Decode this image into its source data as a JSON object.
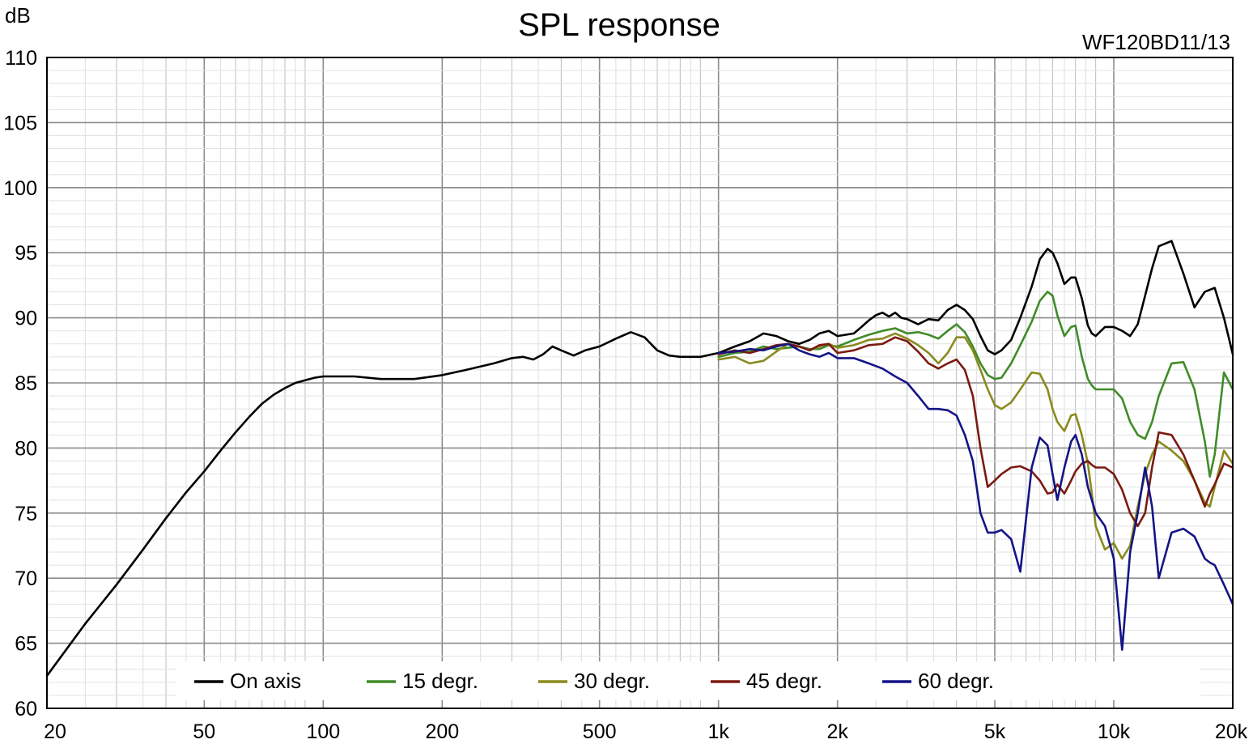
{
  "chart_data": {
    "type": "line",
    "title": "SPL response",
    "subtitle": "WF120BD11/13",
    "ylabel": "dB",
    "xscale": "log",
    "xlim": [
      20,
      20000
    ],
    "ylim": [
      60,
      110
    ],
    "grid": true,
    "legend_position": "bottom",
    "yticks": [
      "60",
      "65",
      "70",
      "75",
      "80",
      "85",
      "90",
      "95",
      "100",
      "105",
      "110"
    ],
    "xticks": [
      "20",
      "50",
      "100",
      "200",
      "500",
      "1k",
      "2k",
      "5k",
      "10k",
      "20k"
    ],
    "series": [
      {
        "name": "On axis",
        "color": "#000000",
        "x": [
          20,
          25,
          30,
          35,
          40,
          45,
          50,
          55,
          60,
          65,
          70,
          75,
          80,
          85,
          90,
          95,
          100,
          110,
          120,
          140,
          170,
          200,
          230,
          270,
          300,
          320,
          340,
          360,
          380,
          400,
          430,
          460,
          500,
          550,
          600,
          650,
          700,
          750,
          800,
          900,
          1000,
          1100,
          1200,
          1300,
          1400,
          1500,
          1600,
          1700,
          1800,
          1900,
          2000,
          2100,
          2200,
          2300,
          2400,
          2500,
          2600,
          2700,
          2800,
          2900,
          3000,
          3200,
          3400,
          3600,
          3800,
          4000,
          4200,
          4400,
          4600,
          4800,
          5000,
          5200,
          5500,
          5800,
          6200,
          6500,
          6800,
          7000,
          7200,
          7500,
          7800,
          8000,
          8300,
          8600,
          8800,
          9000,
          9500,
          10000,
          10500,
          11000,
          11500,
          12000,
          12500,
          13000,
          14000,
          15000,
          16000,
          17000,
          18000,
          19000,
          20000
        ],
        "y": [
          62.5,
          66.5,
          69.5,
          72.2,
          74.6,
          76.6,
          78.2,
          79.8,
          81.2,
          82.4,
          83.4,
          84.1,
          84.6,
          85.0,
          85.2,
          85.4,
          85.5,
          85.5,
          85.5,
          85.3,
          85.3,
          85.6,
          86.0,
          86.5,
          86.9,
          87.0,
          86.8,
          87.2,
          87.8,
          87.5,
          87.1,
          87.5,
          87.8,
          88.4,
          88.9,
          88.5,
          87.5,
          87.1,
          87.0,
          87.0,
          87.3,
          87.8,
          88.2,
          88.8,
          88.6,
          88.2,
          88.0,
          88.3,
          88.8,
          89.0,
          88.6,
          88.7,
          88.8,
          89.3,
          89.8,
          90.2,
          90.4,
          90.1,
          90.4,
          90.0,
          89.9,
          89.5,
          89.9,
          89.8,
          90.6,
          91.0,
          90.6,
          89.9,
          88.6,
          87.5,
          87.2,
          87.5,
          88.3,
          90.0,
          92.4,
          94.5,
          95.3,
          95.0,
          94.2,
          92.6,
          93.1,
          93.1,
          91.5,
          89.4,
          88.8,
          88.6,
          89.3,
          89.3,
          89.0,
          88.6,
          89.5,
          91.7,
          93.8,
          95.5,
          95.9,
          93.4,
          90.8,
          92.0,
          92.3,
          90.0,
          87.2
        ]
      },
      {
        "name": "15 degr.",
        "color": "#3f8c28",
        "x": [
          1000,
          1100,
          1200,
          1300,
          1400,
          1500,
          1600,
          1700,
          1800,
          1900,
          2000,
          2200,
          2400,
          2600,
          2800,
          3000,
          3200,
          3400,
          3600,
          3800,
          4000,
          4200,
          4400,
          4600,
          4800,
          5000,
          5200,
          5500,
          5800,
          6200,
          6500,
          6800,
          7000,
          7200,
          7500,
          7800,
          8000,
          8300,
          8600,
          8800,
          9000,
          9500,
          10000,
          10500,
          11000,
          11500,
          12000,
          12500,
          13000,
          14000,
          15000,
          16000,
          17000,
          17500,
          18000,
          19000,
          20000
        ],
        "y": [
          87.0,
          87.3,
          87.4,
          87.8,
          87.6,
          87.7,
          87.8,
          87.6,
          87.6,
          87.9,
          87.8,
          88.3,
          88.7,
          89.0,
          89.2,
          88.8,
          88.9,
          88.7,
          88.4,
          89.0,
          89.5,
          88.9,
          87.8,
          86.5,
          85.6,
          85.3,
          85.4,
          86.5,
          87.9,
          89.7,
          91.3,
          92.0,
          91.7,
          90.2,
          88.6,
          89.3,
          89.4,
          87.0,
          85.3,
          84.8,
          84.5,
          84.5,
          84.5,
          83.8,
          82.0,
          81.0,
          80.7,
          82.0,
          84.0,
          86.5,
          86.6,
          84.5,
          80.5,
          77.8,
          79.5,
          85.8,
          84.5
        ]
      },
      {
        "name": "30 degr.",
        "color": "#8a8a1e",
        "x": [
          1000,
          1100,
          1200,
          1300,
          1400,
          1500,
          1600,
          1700,
          1800,
          1900,
          2000,
          2200,
          2400,
          2600,
          2800,
          3000,
          3200,
          3400,
          3600,
          3800,
          4000,
          4200,
          4400,
          4600,
          4800,
          5000,
          5200,
          5500,
          5800,
          6200,
          6500,
          6800,
          7000,
          7200,
          7500,
          7800,
          8000,
          8300,
          8600,
          8800,
          9000,
          9500,
          10000,
          10500,
          11000,
          11500,
          12000,
          12500,
          13000,
          14000,
          15000,
          16000,
          17000,
          17500,
          18000,
          19000,
          20000
        ],
        "y": [
          86.8,
          87.0,
          86.5,
          86.7,
          87.4,
          88.0,
          87.8,
          87.5,
          87.8,
          88.0,
          87.7,
          87.9,
          88.3,
          88.4,
          88.8,
          88.4,
          87.9,
          87.3,
          86.5,
          87.3,
          88.5,
          88.5,
          87.5,
          86.0,
          84.5,
          83.3,
          83.0,
          83.5,
          84.5,
          85.8,
          85.7,
          84.5,
          83.0,
          82.0,
          81.3,
          82.5,
          82.6,
          81.0,
          78.8,
          76.5,
          74.0,
          72.2,
          72.7,
          71.5,
          72.5,
          75.5,
          78.0,
          79.5,
          80.5,
          79.8,
          79.0,
          77.5,
          75.8,
          75.5,
          77.0,
          79.8,
          78.8
        ]
      },
      {
        "name": "45 degr.",
        "color": "#7b1a12",
        "x": [
          1000,
          1100,
          1200,
          1300,
          1400,
          1500,
          1600,
          1700,
          1800,
          1900,
          2000,
          2200,
          2400,
          2600,
          2800,
          3000,
          3200,
          3400,
          3600,
          3800,
          4000,
          4200,
          4400,
          4600,
          4800,
          5000,
          5200,
          5500,
          5800,
          6200,
          6500,
          6800,
          7000,
          7200,
          7500,
          7800,
          8000,
          8300,
          8600,
          8800,
          9000,
          9500,
          10000,
          10500,
          11000,
          11500,
          12000,
          12500,
          13000,
          14000,
          15000,
          16000,
          17000,
          17500,
          18000,
          19000,
          20000
        ],
        "y": [
          87.2,
          87.5,
          87.3,
          87.6,
          87.9,
          88.0,
          87.8,
          87.5,
          87.9,
          88.0,
          87.3,
          87.5,
          87.9,
          88.0,
          88.5,
          88.2,
          87.4,
          86.5,
          86.1,
          86.5,
          86.8,
          86.0,
          84.0,
          80.0,
          77.0,
          77.5,
          78.0,
          78.5,
          78.6,
          78.2,
          77.5,
          76.5,
          76.6,
          77.2,
          76.5,
          77.5,
          78.2,
          78.8,
          79.0,
          78.7,
          78.5,
          78.5,
          78.0,
          76.8,
          75.0,
          74.0,
          75.0,
          78.5,
          81.2,
          81.0,
          79.5,
          77.5,
          75.5,
          76.5,
          77.2,
          78.8,
          78.5
        ]
      },
      {
        "name": "60 degr.",
        "color": "#141486",
        "x": [
          1000,
          1100,
          1200,
          1300,
          1400,
          1500,
          1600,
          1700,
          1800,
          1900,
          2000,
          2200,
          2400,
          2600,
          2800,
          3000,
          3200,
          3400,
          3600,
          3800,
          4000,
          4200,
          4400,
          4600,
          4800,
          5000,
          5200,
          5500,
          5800,
          6200,
          6500,
          6800,
          7000,
          7200,
          7500,
          7800,
          8000,
          8300,
          8600,
          8800,
          9000,
          9500,
          10000,
          10500,
          11000,
          11500,
          12000,
          12500,
          13000,
          14000,
          15000,
          16000,
          17000,
          17500,
          18000,
          19000,
          20000
        ],
        "y": [
          87.3,
          87.4,
          87.6,
          87.5,
          87.8,
          88.0,
          87.5,
          87.2,
          87.0,
          87.3,
          86.9,
          86.9,
          86.5,
          86.1,
          85.5,
          85.0,
          84.0,
          83.0,
          83.0,
          82.9,
          82.5,
          81.0,
          79.0,
          75.0,
          73.5,
          73.5,
          73.7,
          73.0,
          70.5,
          78.5,
          80.8,
          80.2,
          78.0,
          76.0,
          78.5,
          80.5,
          81.0,
          79.5,
          77.0,
          76.0,
          75.0,
          74.0,
          71.5,
          64.5,
          72.0,
          75.0,
          78.5,
          75.5,
          70.0,
          73.5,
          73.8,
          73.2,
          71.5,
          71.2,
          71.0,
          69.5,
          68.0
        ]
      }
    ]
  }
}
